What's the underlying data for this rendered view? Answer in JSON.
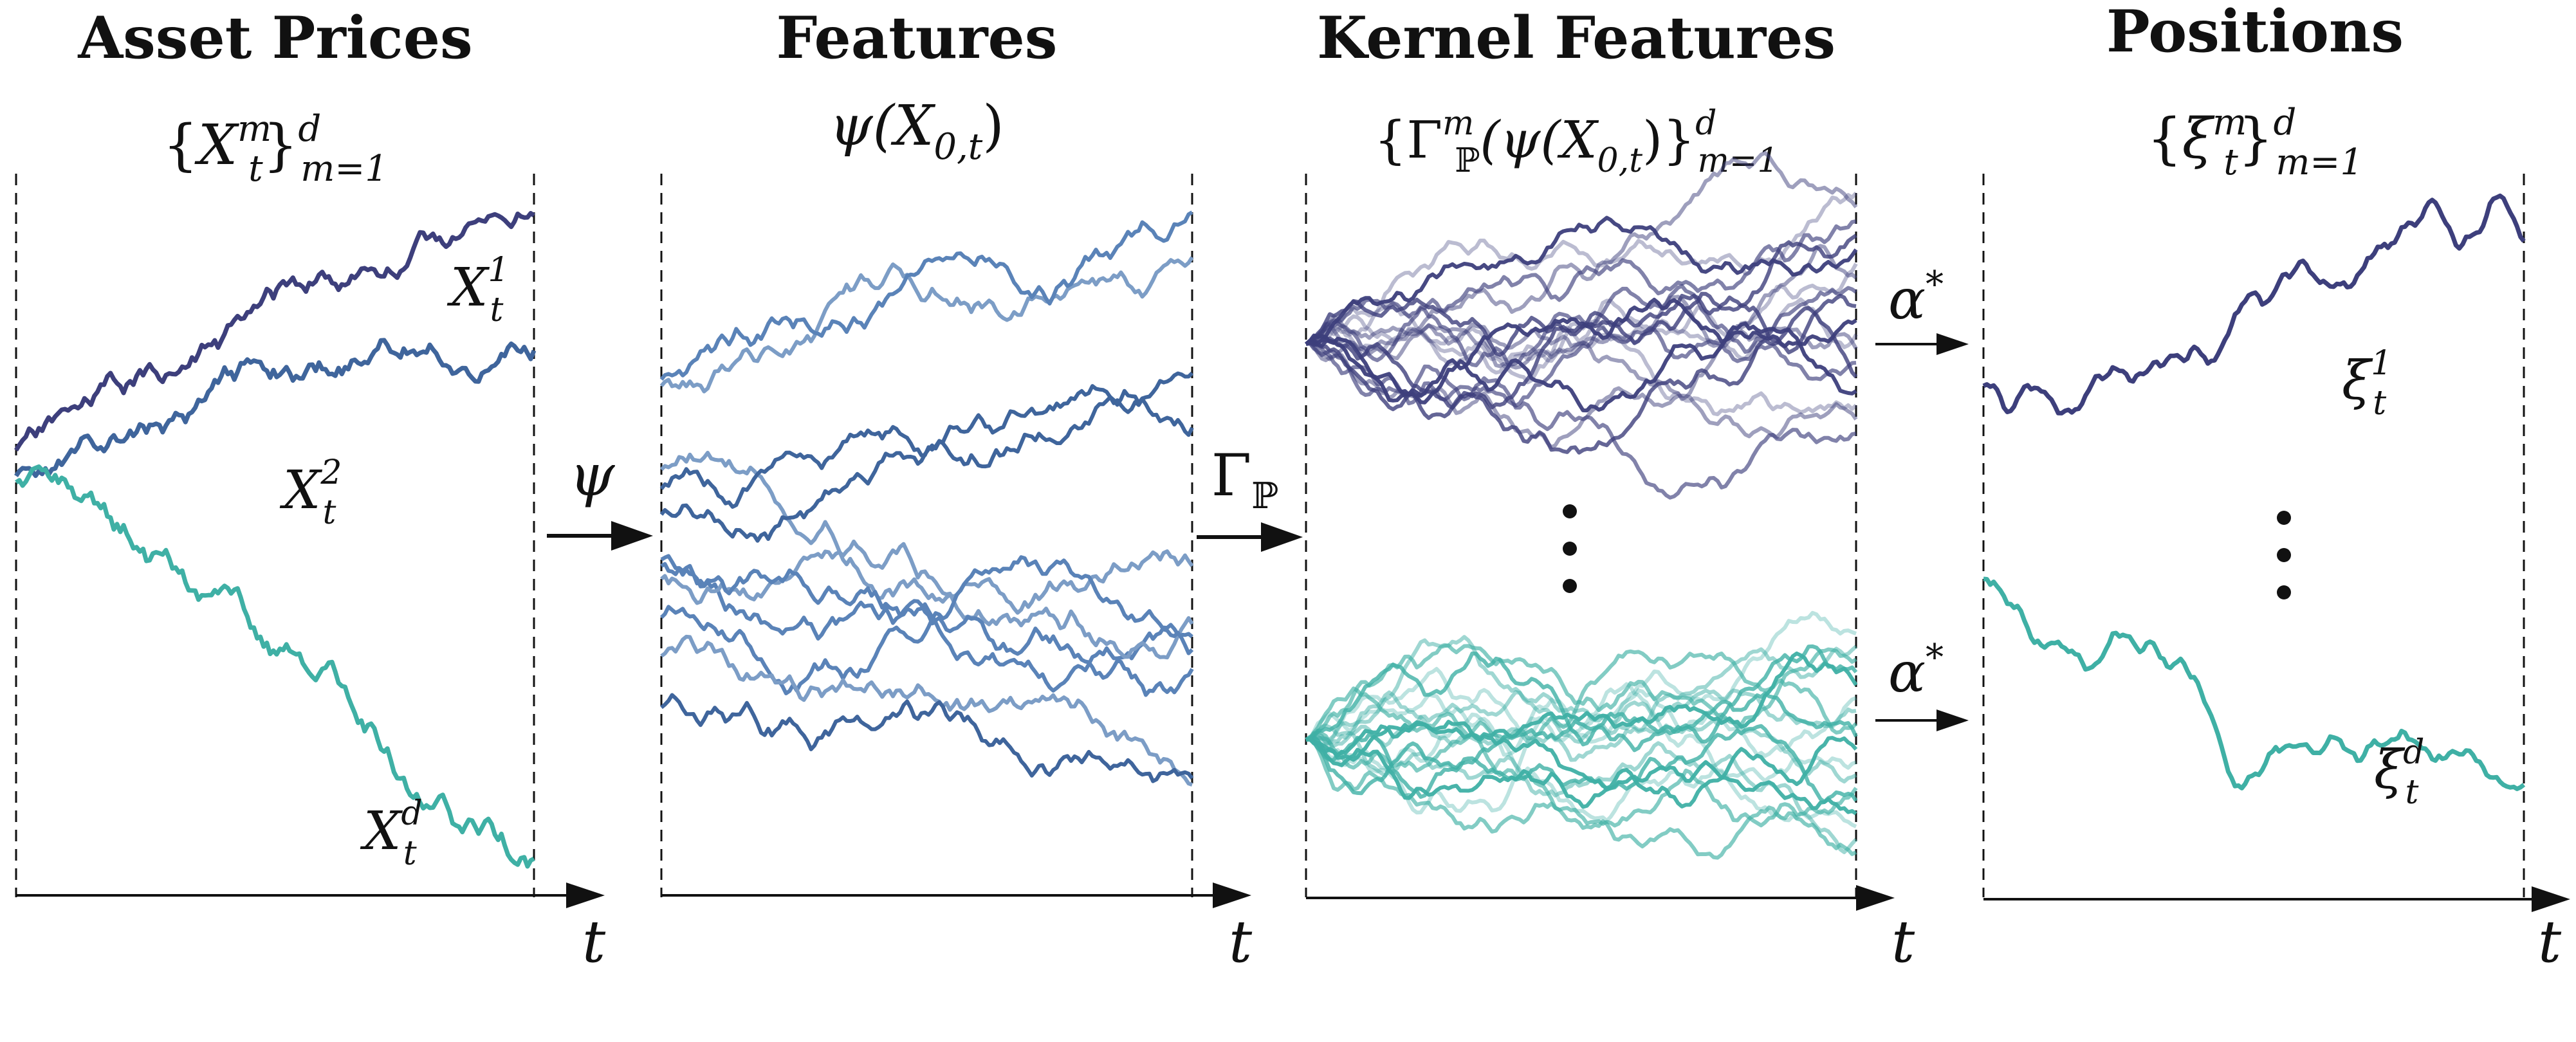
{
  "panels": [
    {
      "title": "Asset Prices",
      "subtitle": {
        "open": "{",
        "sym": "X",
        "sup": "m",
        "sub": "t",
        "close": "}",
        "range_sup": "d",
        "range_sub": "m=1"
      },
      "axis_label": "t",
      "path_labels": [
        {
          "sym": "X",
          "sub": "t",
          "sup": "1"
        },
        {
          "sym": "X",
          "sub": "t",
          "sup": "2"
        },
        {
          "sym": "X",
          "sub": "t",
          "sup": "d"
        }
      ]
    },
    {
      "title": "Features",
      "subtitle": {
        "text": "ψ(X",
        "sub": "0,t",
        "close": ")"
      },
      "axis_label": "t"
    },
    {
      "title": "Kernel Features",
      "subtitle": {
        "open": "{Γ",
        "sub_P": "ℙ",
        "sup": "m",
        "mid": "(ψ(X",
        "sub": "0,t",
        "close": ")}",
        "range_sup": "d",
        "range_sub": "m=1"
      },
      "axis_label": "t"
    },
    {
      "title": "Positions",
      "subtitle": {
        "open": "{",
        "sym": "ξ",
        "sup": "m",
        "sub": "t",
        "close": "}",
        "range_sup": "d",
        "range_sub": "m=1"
      },
      "axis_label": "t",
      "path_labels": [
        {
          "sym": "ξ",
          "sub": "t",
          "sup": "1"
        },
        {
          "sym": "ξ",
          "sub": "t",
          "sup": "d"
        }
      ]
    }
  ],
  "arrows": [
    {
      "label": "ψ"
    },
    {
      "label": "Γ",
      "sub": "ℙ"
    },
    {
      "label": "α",
      "sup": "*"
    },
    {
      "label": "α",
      "sup": "*"
    }
  ],
  "ellipsis": "⋮",
  "colors": {
    "navy": "#3d3f7c",
    "steel": "#3f659c",
    "teal": "#3fb0a5",
    "feature_light": "#7c9dc6",
    "feature_mid": "#5a83b8",
    "axis": "#111111"
  }
}
